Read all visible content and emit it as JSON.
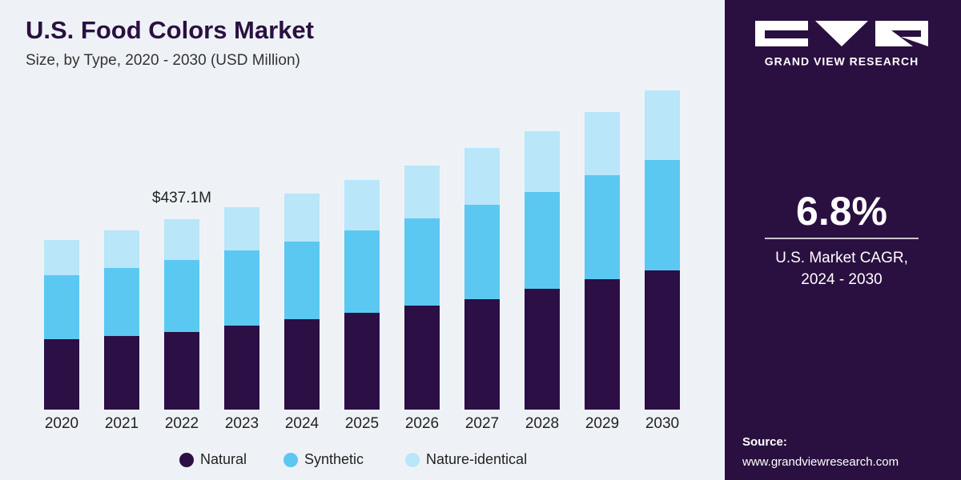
{
  "chart_data": {
    "type": "stacked_bar",
    "title": "U.S. Food Colors Market",
    "subtitle": "Size, by Type, 2020 - 2030 (USD Million)",
    "categories": [
      "2020",
      "2021",
      "2022",
      "2023",
      "2024",
      "2025",
      "2026",
      "2027",
      "2028",
      "2029",
      "2030"
    ],
    "series": [
      {
        "name": "Natural",
        "color": "#2b0f45",
        "values": [
          161.6,
          169.0,
          178.2,
          192.8,
          207.5,
          222.2,
          238.8,
          253.5,
          277.3,
          299.4,
          319.6
        ]
      },
      {
        "name": "Synthetic",
        "color": "#5bc8f2",
        "values": [
          146.9,
          156.1,
          165.3,
          172.6,
          178.2,
          189.2,
          200.2,
          216.7,
          222.2,
          238.8,
          253.5
        ]
      },
      {
        "name": "Nature-identical",
        "color": "#b9e6f9",
        "values": [
          80.8,
          86.3,
          93.6,
          99.2,
          110.2,
          115.7,
          121.2,
          130.4,
          139.6,
          145.1,
          159.8
        ]
      }
    ],
    "annotation": {
      "text": "$437.1M",
      "category": "2022"
    },
    "ylim": [
      0,
      750
    ],
    "legend": "bottom"
  },
  "side_panel": {
    "brand": "GRAND VIEW RESEARCH",
    "cagr": "6.8%",
    "cagr_label": [
      "U.S. Market CAGR,",
      "2024 - 2030"
    ],
    "source_label": "Source:",
    "source_url": "www.grandviewresearch.com"
  }
}
